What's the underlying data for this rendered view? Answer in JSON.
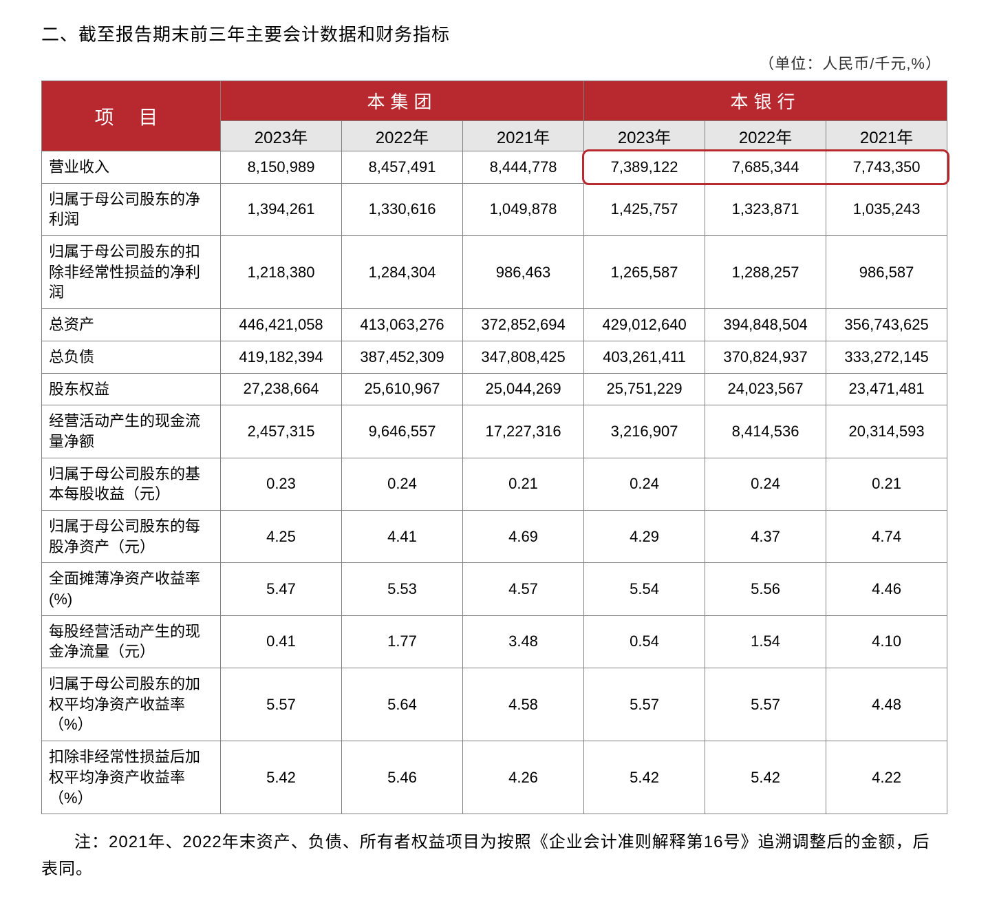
{
  "title": "二、截至报告期末前三年主要会计数据和财务指标",
  "unit": "（单位：人民币/千元,%）",
  "header": {
    "item": "项  目",
    "group": "本集团",
    "bank": "本银行",
    "years": [
      "2023年",
      "2022年",
      "2021年",
      "2023年",
      "2022年",
      "2021年"
    ]
  },
  "rows": [
    {
      "label": "营业收入",
      "vals": [
        "8,150,989",
        "8,457,491",
        "8,444,778",
        "7,389,122",
        "7,685,344",
        "7,743,350"
      ]
    },
    {
      "label": "归属于母公司股东的净利润",
      "vals": [
        "1,394,261",
        "1,330,616",
        "1,049,878",
        "1,425,757",
        "1,323,871",
        "1,035,243"
      ]
    },
    {
      "label": "归属于母公司股东的扣除非经常性损益的净利润",
      "vals": [
        "1,218,380",
        "1,284,304",
        "986,463",
        "1,265,587",
        "1,288,257",
        "986,587"
      ]
    },
    {
      "label": "总资产",
      "vals": [
        "446,421,058",
        "413,063,276",
        "372,852,694",
        "429,012,640",
        "394,848,504",
        "356,743,625"
      ]
    },
    {
      "label": "总负债",
      "vals": [
        "419,182,394",
        "387,452,309",
        "347,808,425",
        "403,261,411",
        "370,824,937",
        "333,272,145"
      ]
    },
    {
      "label": "股东权益",
      "vals": [
        "27,238,664",
        "25,610,967",
        "25,044,269",
        "25,751,229",
        "24,023,567",
        "23,471,481"
      ]
    },
    {
      "label": "经营活动产生的现金流量净额",
      "vals": [
        "2,457,315",
        "9,646,557",
        "17,227,316",
        "3,216,907",
        "8,414,536",
        "20,314,593"
      ]
    },
    {
      "label": "归属于母公司股东的基本每股收益（元）",
      "vals": [
        "0.23",
        "0.24",
        "0.21",
        "0.24",
        "0.24",
        "0.21"
      ]
    },
    {
      "label": "归属于母公司股东的每股净资产（元）",
      "vals": [
        "4.25",
        "4.41",
        "4.69",
        "4.29",
        "4.37",
        "4.74"
      ]
    },
    {
      "label": "全面摊薄净资产收益率(%)",
      "vals": [
        "5.47",
        "5.53",
        "4.57",
        "5.54",
        "5.56",
        "4.46"
      ]
    },
    {
      "label": "每股经营活动产生的现金净流量（元）",
      "vals": [
        "0.41",
        "1.77",
        "3.48",
        "0.54",
        "1.54",
        "4.10"
      ]
    },
    {
      "label": "归属于母公司股东的加权平均净资产收益率（%）",
      "vals": [
        "5.57",
        "5.64",
        "4.58",
        "5.57",
        "5.57",
        "4.48"
      ]
    },
    {
      "label": "扣除非经常性损益后加权平均净资产收益率（%）",
      "vals": [
        "5.42",
        "5.46",
        "4.26",
        "5.42",
        "5.42",
        "4.22"
      ]
    }
  ],
  "footnote": "注：2021年、2022年末资产、负债、所有者权益项目为按照《企业会计准则解释第16号》追溯调整后的金额，后表同。",
  "style": {
    "header_bg": "#b8292f",
    "header_fg": "#ffffff",
    "year_bg": "#e6e6e6",
    "border_color": "#808080",
    "highlight_border": "#b8292f",
    "font": "Microsoft YaHei",
    "title_fontsize": 26,
    "cell_fontsize": 22,
    "year_fontsize": 24
  },
  "highlight": {
    "row_index": 0,
    "col_start": 4,
    "col_end": 6
  }
}
